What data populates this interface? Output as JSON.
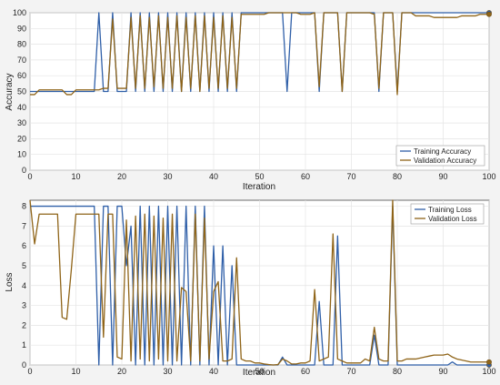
{
  "charts": {
    "accuracy": {
      "ylabel": "Accuracy",
      "xlabel": "Iteration",
      "legend": [
        "Training Accuracy",
        "Validation Accuracy"
      ]
    },
    "loss": {
      "ylabel": "Loss",
      "xlabel": "Iteration",
      "legend": [
        "Training Loss",
        "Validation Loss"
      ]
    }
  },
  "chart_data": [
    {
      "type": "line",
      "xlabel": "Iteration",
      "ylabel": "Accuracy",
      "xlim": [
        0,
        100
      ],
      "ylim": [
        0,
        100
      ],
      "xticks": [
        0,
        10,
        20,
        30,
        40,
        50,
        60,
        70,
        80,
        90,
        100
      ],
      "yticks": [
        0,
        10,
        20,
        30,
        40,
        50,
        60,
        70,
        80,
        90,
        100
      ],
      "grid": true,
      "legend_position": "bottom-right",
      "series": [
        {
          "name": "Training Accuracy",
          "color": "#2f5fa8",
          "x": [
            0,
            1,
            2,
            3,
            4,
            5,
            6,
            7,
            8,
            9,
            10,
            11,
            12,
            13,
            14,
            15,
            16,
            17,
            18,
            19,
            20,
            21,
            22,
            23,
            24,
            25,
            26,
            27,
            28,
            29,
            30,
            31,
            32,
            33,
            34,
            35,
            36,
            37,
            38,
            39,
            40,
            41,
            42,
            43,
            44,
            45,
            46,
            47,
            48,
            49,
            50,
            51,
            52,
            53,
            54,
            55,
            56,
            57,
            58,
            59,
            60,
            61,
            62,
            63,
            64,
            65,
            66,
            67,
            68,
            69,
            70,
            71,
            72,
            73,
            74,
            75,
            76,
            77,
            78,
            79,
            80,
            81,
            82,
            83,
            84,
            85,
            86,
            87,
            88,
            89,
            90,
            91,
            92,
            93,
            94,
            95,
            96,
            97,
            98,
            99,
            100
          ],
          "y": [
            50,
            50,
            50,
            50,
            50,
            50,
            50,
            50,
            50,
            50,
            50,
            50,
            50,
            50,
            50,
            100,
            50,
            50,
            100,
            50,
            50,
            50,
            100,
            50,
            100,
            50,
            100,
            50,
            100,
            50,
            100,
            50,
            100,
            50,
            100,
            50,
            100,
            50,
            100,
            50,
            100,
            50,
            100,
            50,
            100,
            50,
            100,
            100,
            100,
            100,
            100,
            100,
            100,
            100,
            100,
            100,
            50,
            100,
            100,
            100,
            100,
            100,
            100,
            50,
            100,
            100,
            100,
            100,
            50,
            100,
            100,
            100,
            100,
            100,
            100,
            100,
            50,
            100,
            100,
            100,
            50,
            100,
            100,
            100,
            100,
            100,
            100,
            100,
            100,
            100,
            100,
            100,
            100,
            100,
            100,
            100,
            100,
            100,
            100,
            100,
            100
          ]
        },
        {
          "name": "Validation Accuracy",
          "color": "#8f6418",
          "x": [
            0,
            1,
            2,
            3,
            4,
            5,
            6,
            7,
            8,
            9,
            10,
            11,
            12,
            13,
            14,
            15,
            16,
            17,
            18,
            19,
            20,
            21,
            22,
            23,
            24,
            25,
            26,
            27,
            28,
            29,
            30,
            31,
            32,
            33,
            34,
            35,
            36,
            37,
            38,
            39,
            40,
            41,
            42,
            43,
            44,
            45,
            46,
            47,
            48,
            49,
            50,
            51,
            52,
            53,
            54,
            55,
            56,
            57,
            58,
            59,
            60,
            61,
            62,
            63,
            64,
            65,
            66,
            67,
            68,
            69,
            70,
            71,
            72,
            73,
            74,
            75,
            76,
            77,
            78,
            79,
            80,
            81,
            82,
            83,
            84,
            85,
            86,
            87,
            88,
            89,
            90,
            91,
            92,
            93,
            94,
            95,
            96,
            97,
            98,
            99,
            100
          ],
          "y": [
            48,
            48,
            51,
            51,
            51,
            51,
            51,
            51,
            48,
            48,
            51,
            51,
            51,
            51,
            51,
            51,
            52,
            52,
            96,
            52,
            52,
            52,
            97,
            52,
            98,
            52,
            97,
            53,
            98,
            52,
            97,
            52,
            98,
            50,
            97,
            52,
            98,
            50,
            98,
            52,
            97,
            52,
            98,
            52,
            97,
            52,
            99,
            99,
            99,
            99,
            99,
            99,
            100,
            100,
            100,
            100,
            100,
            100,
            100,
            99,
            99,
            99,
            100,
            53,
            100,
            100,
            100,
            100,
            50,
            100,
            100,
            100,
            100,
            100,
            100,
            99,
            52,
            100,
            100,
            100,
            48,
            100,
            100,
            100,
            98,
            98,
            98,
            98,
            97,
            97,
            97,
            97,
            97,
            97,
            98,
            98,
            98,
            98,
            99,
            99,
            99
          ]
        }
      ]
    },
    {
      "type": "line",
      "xlabel": "Iteration",
      "ylabel": "Loss",
      "xlim": [
        0,
        100
      ],
      "ylim": [
        0,
        8.3
      ],
      "xticks": [
        0,
        10,
        20,
        30,
        40,
        50,
        60,
        70,
        80,
        90,
        100
      ],
      "yticks": [
        0,
        1,
        2,
        3,
        4,
        5,
        6,
        7,
        8
      ],
      "grid": true,
      "legend_position": "top-right",
      "series": [
        {
          "name": "Training Loss",
          "color": "#2f5fa8",
          "x": [
            0,
            1,
            2,
            3,
            4,
            5,
            6,
            7,
            8,
            9,
            10,
            11,
            12,
            13,
            14,
            15,
            16,
            17,
            18,
            19,
            20,
            21,
            22,
            23,
            24,
            25,
            26,
            27,
            28,
            29,
            30,
            31,
            32,
            33,
            34,
            35,
            36,
            37,
            38,
            39,
            40,
            41,
            42,
            43,
            44,
            45,
            46,
            47,
            48,
            49,
            50,
            51,
            52,
            53,
            54,
            55,
            56,
            57,
            58,
            59,
            60,
            61,
            62,
            63,
            64,
            65,
            66,
            67,
            68,
            69,
            70,
            71,
            72,
            73,
            74,
            75,
            76,
            77,
            78,
            79,
            80,
            81,
            82,
            83,
            84,
            85,
            86,
            87,
            88,
            89,
            90,
            91,
            92,
            93,
            94,
            95,
            96,
            97,
            98,
            99,
            100
          ],
          "y": [
            8,
            8,
            8,
            8,
            8,
            8,
            8,
            8,
            8,
            8,
            8,
            8,
            8,
            8,
            8,
            0,
            8,
            8,
            0,
            8,
            8,
            5,
            7,
            0,
            8,
            0,
            8,
            0,
            8,
            0,
            8,
            0,
            8,
            0,
            8,
            0,
            8,
            0,
            8,
            0,
            6,
            0,
            6,
            0,
            5,
            0,
            0,
            0,
            0,
            0,
            0,
            0,
            0,
            0,
            0,
            0.4,
            0,
            0,
            0,
            0,
            0,
            0,
            0,
            3.2,
            0,
            0,
            0,
            6.5,
            0,
            0,
            0,
            0,
            0,
            0,
            0,
            1.5,
            0,
            0,
            0,
            8,
            0,
            0,
            0,
            0,
            0,
            0,
            0,
            0,
            0,
            0,
            0,
            0,
            0.15,
            0,
            0,
            0,
            0,
            0,
            0,
            0,
            0
          ]
        },
        {
          "name": "Validation Loss",
          "color": "#8f6418",
          "x": [
            0,
            1,
            2,
            3,
            4,
            5,
            6,
            7,
            8,
            9,
            10,
            11,
            12,
            13,
            14,
            15,
            16,
            17,
            18,
            19,
            20,
            21,
            22,
            23,
            24,
            25,
            26,
            27,
            28,
            29,
            30,
            31,
            32,
            33,
            34,
            35,
            36,
            37,
            38,
            39,
            40,
            41,
            42,
            43,
            44,
            45,
            46,
            47,
            48,
            49,
            50,
            51,
            52,
            53,
            54,
            55,
            56,
            57,
            58,
            59,
            60,
            61,
            62,
            63,
            64,
            65,
            66,
            67,
            68,
            69,
            70,
            71,
            72,
            73,
            74,
            75,
            76,
            77,
            78,
            79,
            80,
            81,
            82,
            83,
            84,
            85,
            86,
            87,
            88,
            89,
            90,
            91,
            92,
            93,
            94,
            95,
            96,
            97,
            98,
            99,
            100
          ],
          "y": [
            8.3,
            6.1,
            7.6,
            7.6,
            7.6,
            7.6,
            7.6,
            2.4,
            2.3,
            4.8,
            7.6,
            7.6,
            7.6,
            7.6,
            7.6,
            7.6,
            1.4,
            7.6,
            7.6,
            0.4,
            0.3,
            7.3,
            0.2,
            7.5,
            0.3,
            7.6,
            0.2,
            7.5,
            0.3,
            7.4,
            0.2,
            7.6,
            0.2,
            3.9,
            3.7,
            0.2,
            7.6,
            0.2,
            7.4,
            0.3,
            3.7,
            4.2,
            0.2,
            0.2,
            0.3,
            5.4,
            0.3,
            0.2,
            0.2,
            0.1,
            0.1,
            0.05,
            0.02,
            0,
            0.02,
            0.3,
            0.2,
            0.05,
            0.05,
            0.1,
            0.1,
            0.2,
            3.8,
            0.2,
            0.3,
            0.4,
            6.6,
            0.3,
            0.2,
            0.1,
            0.1,
            0.1,
            0.1,
            0.3,
            0.2,
            1.9,
            0.3,
            0.2,
            0.2,
            8.3,
            0.2,
            0.2,
            0.3,
            0.3,
            0.3,
            0.35,
            0.4,
            0.45,
            0.5,
            0.5,
            0.5,
            0.55,
            0.4,
            0.3,
            0.25,
            0.2,
            0.15,
            0.15,
            0.15,
            0.15,
            0.15
          ]
        }
      ]
    }
  ]
}
